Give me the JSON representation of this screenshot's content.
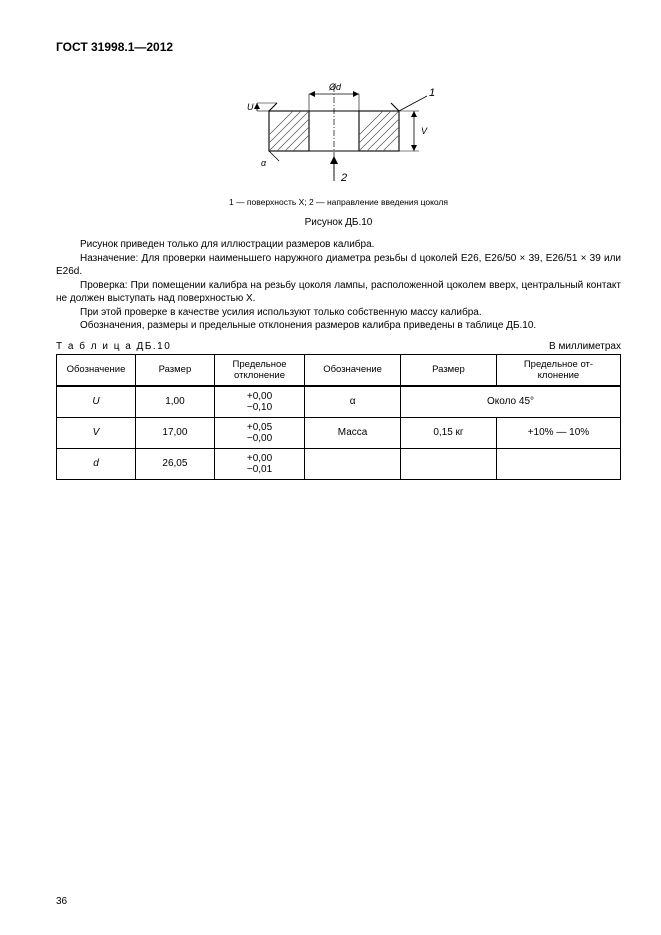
{
  "header": "ГОСТ 31998.1—2012",
  "figure": {
    "dim_label_d": "Ød",
    "dim_label_u": "U",
    "dim_label_v": "V",
    "dim_label_a": "α",
    "callout_1": "1",
    "callout_2": "2",
    "caption_small": "1 — поверхность X; 2 — направление введения цоколя",
    "label": "Рисунок ДБ.10"
  },
  "paragraphs": {
    "p1": "Рисунок приведен только для иллюстрации размеров калибра.",
    "p2": "Назначение: Для проверки наименьшего наружного диаметра резьбы d цоколей E26, E26/50 × 39, E26/51 × 39 или E26d.",
    "p3": "Проверка: При помещении калибра на резьбу цоколя лампы, расположенной цоколем вверх, центральный контакт не должен выступать над поверхностью X.",
    "p4": "При этой проверке в качестве усилия используют только собственную массу калибра.",
    "p5": "Обозначения, размеры и предельные отклонения размеров калибра приведены в таблице ДБ.10."
  },
  "table": {
    "label": "Т а б л и ц а  ДБ.10",
    "units": "В миллиметрах",
    "headers": {
      "h1": "Обозначение",
      "h2": "Размер",
      "h3": "Предельное отклонение",
      "h4": "Обозначение",
      "h5": "Размер",
      "h6": "Предельное от-\nклонение"
    },
    "rows": [
      {
        "a": "U",
        "b": "1,00",
        "c": "+0,00\n−0,10",
        "d": "α",
        "e_span": "Около 45°"
      },
      {
        "a": "V",
        "b": "17,00",
        "c": "+0,05\n−0,00",
        "d": "Масса",
        "e": "0,15 кг",
        "f": "+10% — 10%"
      },
      {
        "a": "d",
        "b": "26,05",
        "c": "+0,00\n−0,01",
        "d": "",
        "e": "",
        "f": ""
      }
    ]
  },
  "page_number": "36",
  "diagram_style": {
    "stroke": "#000000",
    "hatch_stroke": "#555555",
    "stroke_width": 1.1,
    "font_size_dim": 9,
    "font_size_callout": 11
  }
}
